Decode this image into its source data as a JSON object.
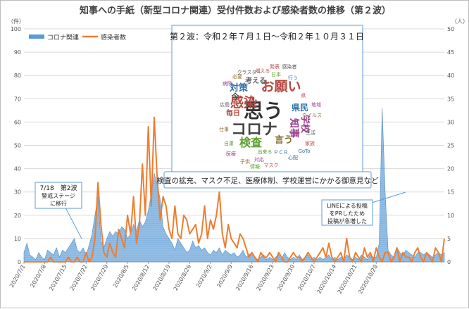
{
  "chart_data": {
    "type": "line",
    "title": "知事への手紙（新型コロナ関連）受付件数および感染者数の推移（第２波）",
    "yleft_unit": "（件）",
    "yright_unit": "（人）",
    "yleft_lim": [
      0,
      100
    ],
    "yleft_ticks": [
      "0",
      "10",
      "20",
      "30",
      "40",
      "50",
      "60",
      "70",
      "80",
      "90",
      "100"
    ],
    "yright_lim": [
      0,
      50
    ],
    "yright_ticks": [
      "0",
      "5",
      "10",
      "15",
      "20",
      "25",
      "30",
      "35",
      "40",
      "45",
      "50"
    ],
    "x_ticks": [
      "2020/7/1",
      "2020/7/8",
      "2020/7/15",
      "2020/7/22",
      "2020/7/29",
      "2020/8/5",
      "2020/8/12",
      "2020/8/19",
      "2020/8/26",
      "2020/9/2",
      "2020/9/9",
      "2020/9/16",
      "2020/9/23",
      "2020/9/30",
      "2020/10/7",
      "2020/10/14",
      "2020/10/21",
      "2020/10/28"
    ],
    "grid": true,
    "legend": "top-left",
    "series": [
      {
        "name": "コロナ関連",
        "type": "area",
        "axis": "left",
        "color": "#5b9bd5",
        "values": [
          4,
          8,
          3,
          2,
          1,
          4,
          2,
          1,
          5,
          4,
          3,
          6,
          2,
          5,
          4,
          6,
          8,
          10,
          5,
          4,
          6,
          3,
          7,
          12,
          20,
          28,
          9,
          6,
          10,
          13,
          11,
          13,
          12,
          15,
          14,
          10,
          12,
          16,
          13,
          18,
          15,
          17,
          22,
          29,
          38,
          33,
          27,
          15,
          12,
          10,
          8,
          5,
          10,
          8,
          6,
          4,
          5,
          9,
          6,
          7,
          5,
          6,
          4,
          3,
          5,
          4,
          6,
          3,
          5,
          4,
          3,
          4,
          2,
          3,
          5,
          2,
          3,
          4,
          2,
          1,
          2,
          3,
          1,
          2,
          1,
          2,
          3,
          1,
          4,
          2,
          1,
          2,
          1,
          3,
          1,
          2,
          3,
          1,
          2,
          1,
          2,
          1,
          2,
          3,
          1,
          2,
          1,
          2,
          1,
          3,
          2,
          1,
          2,
          1,
          3,
          2,
          1,
          3,
          2,
          2,
          8,
          66,
          30,
          5,
          3,
          2,
          6,
          4,
          3,
          5,
          4,
          3,
          2,
          4,
          4,
          3,
          4,
          3,
          2,
          3,
          4,
          3,
          4
        ]
      },
      {
        "name": "感染者数",
        "type": "line",
        "axis": "right",
        "color": "#ed7d31",
        "values": [
          0,
          0,
          0,
          0,
          0,
          0,
          0,
          0,
          0,
          1,
          0,
          0,
          0,
          0,
          0,
          1,
          0,
          0,
          1,
          0,
          0,
          2,
          0,
          1,
          5,
          17,
          8,
          2,
          1,
          4,
          2,
          1,
          7,
          5,
          3,
          10,
          6,
          14,
          4,
          8,
          21,
          10,
          29,
          12,
          31,
          18,
          9,
          14,
          12,
          7,
          5,
          12,
          6,
          5,
          10,
          9,
          6,
          7,
          8,
          4,
          6,
          12,
          5,
          9,
          7,
          10,
          15,
          6,
          3,
          8,
          5,
          4,
          3,
          6,
          5,
          3,
          1,
          2,
          1,
          0,
          2,
          1,
          1,
          2,
          1,
          0,
          2,
          1,
          0,
          0,
          1,
          2,
          1,
          1,
          0,
          1,
          2,
          1,
          0,
          1,
          2,
          3,
          1,
          4,
          1,
          0,
          1,
          2,
          0,
          5,
          1,
          0,
          2,
          1,
          0,
          3,
          1,
          2,
          0,
          3,
          1,
          0,
          2,
          2,
          0,
          1,
          3,
          0,
          2,
          1,
          1,
          0,
          2,
          3,
          1,
          0,
          2,
          1,
          0,
          3,
          2,
          0,
          5
        ]
      }
    ]
  },
  "inset": {
    "title": "第２波：令和２年７月１日～令和２年１０月３１日",
    "caption": "検査の拡充、マスク不足、医療体制、学校運営にかかる御意見など",
    "big_words": [
      "思う",
      "コロナ",
      "感染",
      "お願い",
      "検査",
      "対策",
      "知事",
      "学校",
      "県民",
      "言う",
      "今",
      "人",
      "毎日",
      "考える"
    ],
    "small_words": [
      "県",
      "出来る",
      "ＰＣＲ",
      "対応",
      "子供",
      "クラスター",
      "増える",
      "日本",
      "行う",
      "病院",
      "仕事",
      "生活",
      "家族",
      "自粛",
      "心配",
      "医療",
      "ウイルス",
      "広島",
      "発表",
      "情報",
      "GoTo",
      "地域",
      "必要",
      "感染者",
      "マスク"
    ]
  },
  "annotations": [
    {
      "lines": [
        "7/18　第2波",
        "警戒ステージ",
        "に移行"
      ]
    },
    {
      "lines": [
        "LINEによる投稿",
        "をPRしたため",
        "投稿が急増した"
      ]
    }
  ]
}
